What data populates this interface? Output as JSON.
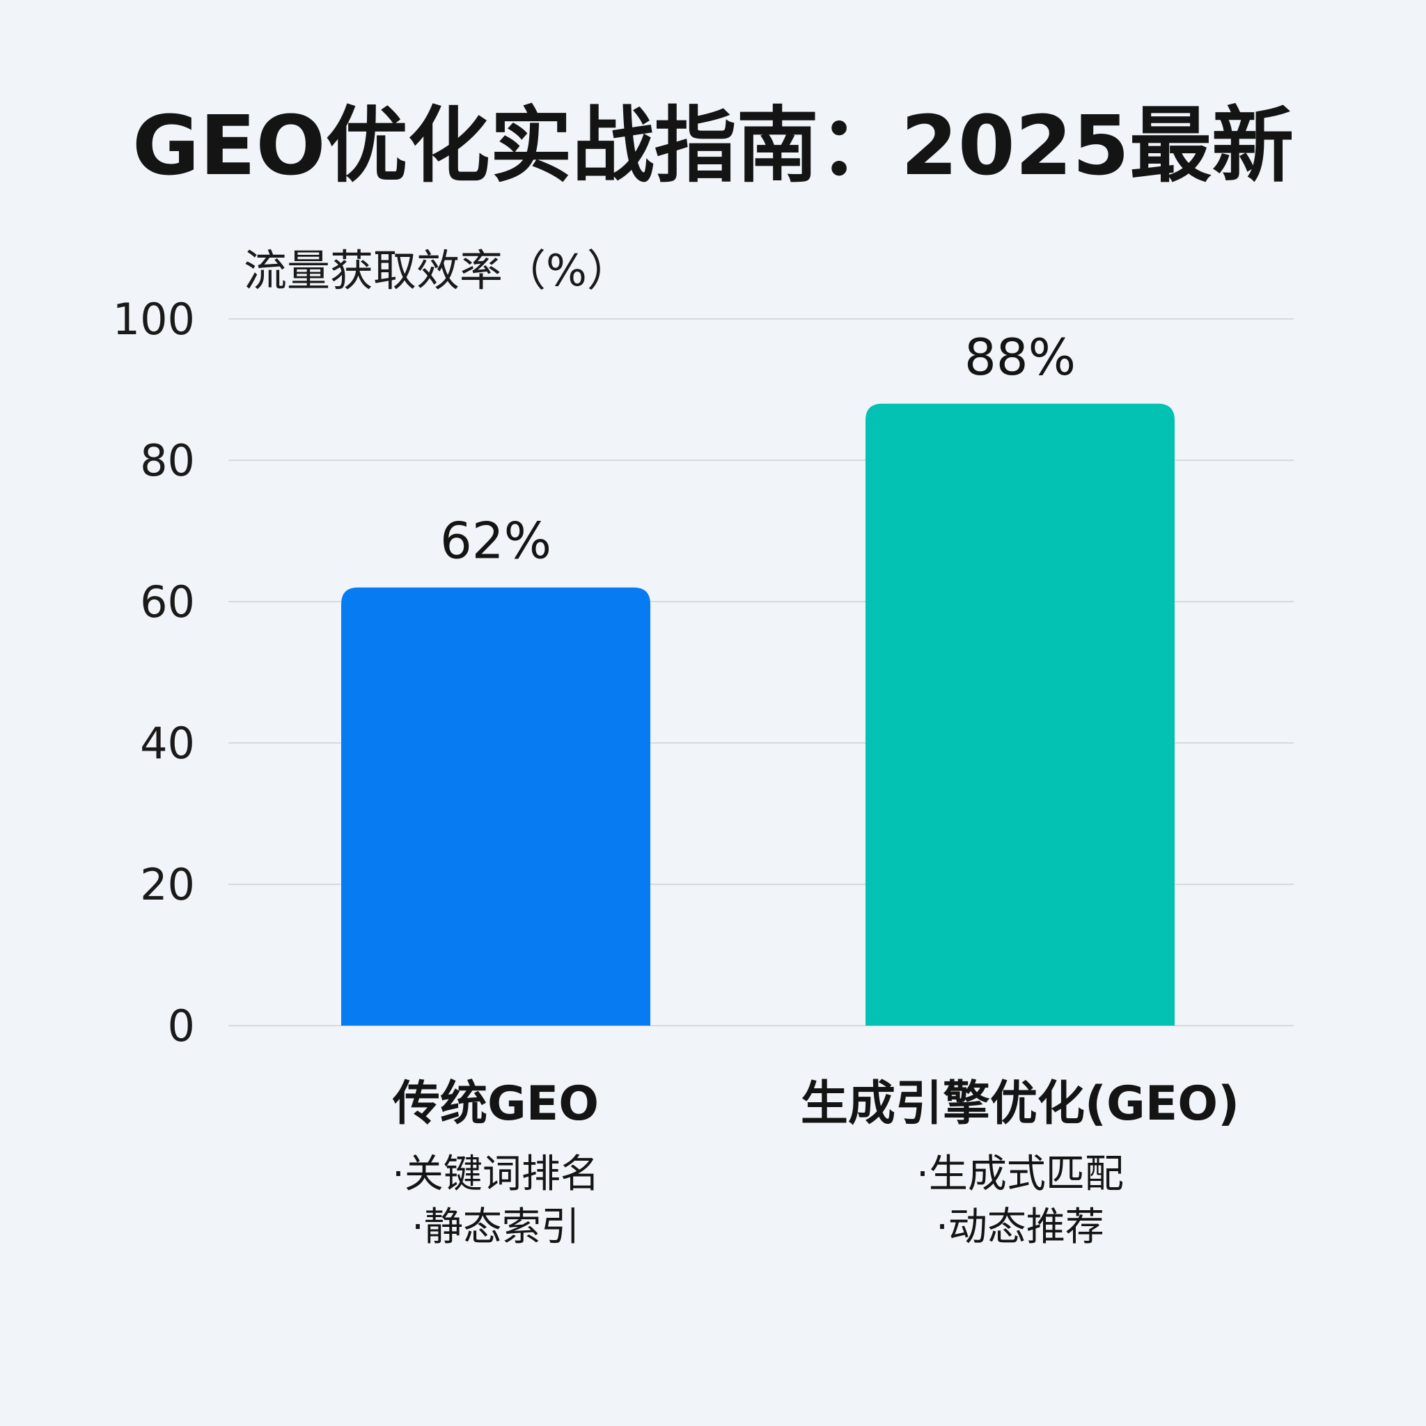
{
  "chart_data": {
    "type": "bar",
    "title": "GEO优化实战指南：2025最新",
    "ylabel": "流量获取效率（%）",
    "xlabel": "",
    "ylim": [
      0,
      100
    ],
    "yticks": [
      0,
      20,
      40,
      60,
      80,
      100
    ],
    "grid": true,
    "categories": [
      "传统GEO",
      "生成引擎优化(GEO)"
    ],
    "values": [
      62,
      88
    ],
    "value_labels": [
      "62%",
      "88%"
    ],
    "bar_colors": [
      "#077cf2",
      "#03c2b3"
    ],
    "category_bullets": [
      [
        "·关键词排名",
        "·静态索引"
      ],
      [
        "·生成式匹配",
        "·动态推荐"
      ]
    ]
  }
}
